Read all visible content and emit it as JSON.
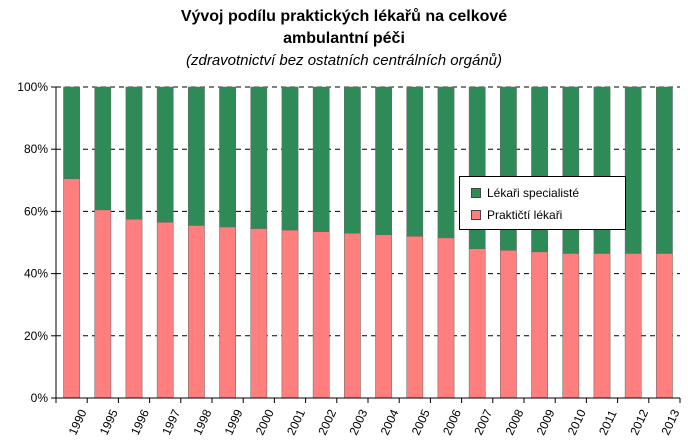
{
  "title_line1": "Vývoj podílu praktických lékařů na celkové",
  "title_line2": "ambulantní péči",
  "subtitle": "(zdravotnictví bez ostatních centrálních orgánů)",
  "colors": {
    "specialists": "#2e8b57",
    "practitioners": "#ff7f7f"
  },
  "chart_data": {
    "type": "bar",
    "stacked": true,
    "percent": true,
    "categories": [
      "1990",
      "1995",
      "1996",
      "1997",
      "1998",
      "1999",
      "2000",
      "2001",
      "2002",
      "2003",
      "2004",
      "2005",
      "2006",
      "2007",
      "2008",
      "2009",
      "2010",
      "2011",
      "2012",
      "2013"
    ],
    "series": [
      {
        "name": "Praktičtí lékaři",
        "values": [
          70.5,
          60.5,
          57.5,
          56.5,
          55.5,
          55,
          54.5,
          54,
          53.5,
          53,
          52.5,
          52,
          51.5,
          48,
          47.5,
          47,
          46.5,
          46.5,
          46.5,
          46.5
        ]
      },
      {
        "name": "Lékaři specialisté",
        "values": [
          29.5,
          39.5,
          42.5,
          43.5,
          44.5,
          45,
          45.5,
          46,
          46.5,
          47,
          47.5,
          48,
          48.5,
          52,
          52.5,
          53,
          53.5,
          53.5,
          53.5,
          53.5
        ]
      }
    ],
    "ylim": [
      0,
      100
    ],
    "yticks": [
      "0%",
      "20%",
      "40%",
      "60%",
      "80%",
      "100%"
    ],
    "legend_position": "right",
    "grid": "dashed-horizontal"
  }
}
